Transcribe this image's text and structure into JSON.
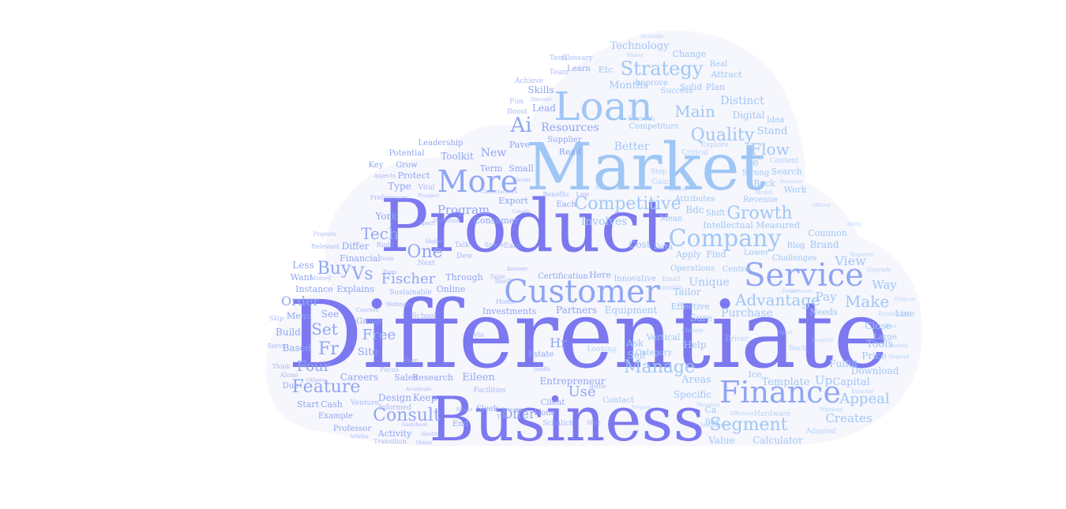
{
  "wordcloud": {
    "palette": {
      "light": "#9fc7f5",
      "mid": "#8fa6f2",
      "deep": "#7b78f0",
      "shape_fill": "#f6f6fd"
    },
    "words": [
      {
        "text": "Differentiate",
        "weight": 1.0
      },
      {
        "text": "Product",
        "weight": 0.78
      },
      {
        "text": "Market",
        "weight": 0.72
      },
      {
        "text": "Business",
        "weight": 0.72
      },
      {
        "text": "Loan",
        "weight": 0.46
      },
      {
        "text": "Customer",
        "weight": 0.42
      },
      {
        "text": "Service",
        "weight": 0.42
      },
      {
        "text": "Finance",
        "weight": 0.4
      },
      {
        "text": "More",
        "weight": 0.36
      },
      {
        "text": "Company",
        "weight": 0.32
      },
      {
        "text": "Strategy",
        "weight": 0.26
      },
      {
        "text": "Ai",
        "weight": 0.26
      },
      {
        "text": "Growth",
        "weight": 0.24
      },
      {
        "text": "Manage",
        "weight": 0.24
      },
      {
        "text": "Quality",
        "weight": 0.22
      },
      {
        "text": "Competitive",
        "weight": 0.21
      },
      {
        "text": "Feature",
        "weight": 0.22
      },
      {
        "text": "Consult",
        "weight": 0.22
      },
      {
        "text": "Segment",
        "weight": 0.22
      },
      {
        "text": "Advantage",
        "weight": 0.2
      },
      {
        "text": "Tech",
        "weight": 0.2
      },
      {
        "text": "One",
        "weight": 0.2
      },
      {
        "text": "Buy",
        "weight": 0.2
      },
      {
        "text": "Vs",
        "weight": 0.18
      },
      {
        "text": "Fischer",
        "weight": 0.18
      },
      {
        "text": "Main",
        "weight": 0.2
      },
      {
        "text": "Flow",
        "weight": 0.2
      },
      {
        "text": "Make",
        "weight": 0.2
      },
      {
        "text": "Appeal",
        "weight": 0.18
      },
      {
        "text": "Free",
        "weight": 0.18
      },
      {
        "text": "Set",
        "weight": 0.18
      },
      {
        "text": "Fr",
        "weight": 0.2
      },
      {
        "text": "Four",
        "weight": 0.18
      },
      {
        "text": "Order",
        "weight": 0.16
      },
      {
        "text": "Use",
        "weight": 0.18
      },
      {
        "text": "Hr",
        "weight": 0.16
      },
      {
        "text": "Offer",
        "weight": 0.15
      },
      {
        "text": "Program",
        "weight": 0.15
      },
      {
        "text": "Resources",
        "weight": 0.14
      },
      {
        "text": "Involves",
        "weight": 0.14
      },
      {
        "text": "Better",
        "weight": 0.14
      },
      {
        "text": "Distinct",
        "weight": 0.14
      },
      {
        "text": "Technology",
        "weight": 0.13
      },
      {
        "text": "Months",
        "weight": 0.13
      },
      {
        "text": "Unique",
        "weight": 0.14
      },
      {
        "text": "View",
        "weight": 0.16
      },
      {
        "text": "Purchase",
        "weight": 0.14
      },
      {
        "text": "Creates",
        "weight": 0.15
      },
      {
        "text": "Template",
        "weight": 0.13
      },
      {
        "text": "Capital",
        "weight": 0.13
      },
      {
        "text": "Up",
        "weight": 0.15
      },
      {
        "text": "Pay",
        "weight": 0.15
      },
      {
        "text": "Way",
        "weight": 0.15
      },
      {
        "text": "Tools",
        "weight": 0.13
      },
      {
        "text": "Close",
        "weight": 0.12
      },
      {
        "text": "Price",
        "weight": 0.12
      },
      {
        "text": "Download",
        "weight": 0.12
      },
      {
        "text": "Fulfill",
        "weight": 0.12
      },
      {
        "text": "Sell",
        "weight": 0.12
      },
      {
        "text": "Ask",
        "weight": 0.12
      },
      {
        "text": "Help",
        "weight": 0.12
      },
      {
        "text": "Sure",
        "weight": 0.12
      },
      {
        "text": "Calculator",
        "weight": 0.12
      },
      {
        "text": "Value",
        "weight": 0.12
      },
      {
        "text": "Areas",
        "weight": 0.13
      },
      {
        "text": "Specific",
        "weight": 0.12
      },
      {
        "text": "Tailor",
        "weight": 0.12
      },
      {
        "text": "Vertical",
        "weight": 0.11
      },
      {
        "text": "Equipment",
        "weight": 0.12
      },
      {
        "text": "Partners",
        "weight": 0.12
      },
      {
        "text": "Investments",
        "weight": 0.11
      },
      {
        "text": "Entrepreneur",
        "weight": 0.12
      },
      {
        "text": "Eileen",
        "weight": 0.13
      },
      {
        "text": "Careers",
        "weight": 0.12
      },
      {
        "text": "Sales",
        "weight": 0.11
      },
      {
        "text": "Research",
        "weight": 0.11
      },
      {
        "text": "Design",
        "weight": 0.12
      },
      {
        "text": "Keep",
        "weight": 0.12
      },
      {
        "text": "Activity",
        "weight": 0.11
      },
      {
        "text": "Professor",
        "weight": 0.1
      },
      {
        "text": "Example",
        "weight": 0.1
      },
      {
        "text": "Start",
        "weight": 0.11
      },
      {
        "text": "Cash",
        "weight": 0.11
      },
      {
        "text": "Due",
        "weight": 0.1
      },
      {
        "text": "Site",
        "weight": 0.13
      },
      {
        "text": "Based",
        "weight": 0.12
      },
      {
        "text": "Build",
        "weight": 0.12
      },
      {
        "text": "See",
        "weight": 0.12
      },
      {
        "text": "Menu",
        "weight": 0.11
      },
      {
        "text": "Instance",
        "weight": 0.11
      },
      {
        "text": "Explains",
        "weight": 0.11
      },
      {
        "text": "Want",
        "weight": 0.11
      },
      {
        "text": "Less",
        "weight": 0.12
      },
      {
        "text": "Financial",
        "weight": 0.11
      },
      {
        "text": "Differ",
        "weight": 0.12
      },
      {
        "text": "Type",
        "weight": 0.12
      },
      {
        "text": "York",
        "weight": 0.12
      },
      {
        "text": "Protect",
        "weight": 0.11
      },
      {
        "text": "Grow",
        "weight": 0.1
      },
      {
        "text": "Toolkit",
        "weight": 0.12
      },
      {
        "text": "Key",
        "weight": 0.1
      },
      {
        "text": "Potential",
        "weight": 0.1
      },
      {
        "text": "Leadership",
        "weight": 0.1
      },
      {
        "text": "Term",
        "weight": 0.11
      },
      {
        "text": "Small",
        "weight": 0.11
      },
      {
        "text": "Export",
        "weight": 0.11
      },
      {
        "text": "Consumer",
        "weight": 0.11
      },
      {
        "text": "Through",
        "weight": 0.11
      },
      {
        "text": "Online",
        "weight": 0.11
      },
      {
        "text": "Certification",
        "weight": 0.1
      },
      {
        "text": "Here",
        "weight": 0.11
      },
      {
        "text": "Innovative",
        "weight": 0.1
      },
      {
        "text": "Cost",
        "weight": 0.12
      },
      {
        "text": "Data",
        "weight": 0.1
      },
      {
        "text": "Apply",
        "weight": 0.11
      },
      {
        "text": "Find",
        "weight": 0.11
      },
      {
        "text": "Operations",
        "weight": 0.1
      },
      {
        "text": "Centre",
        "weight": 0.1
      },
      {
        "text": "Effective",
        "weight": 0.11
      },
      {
        "text": "Lower",
        "weight": 0.1
      },
      {
        "text": "Challenges",
        "weight": 0.1
      },
      {
        "text": "Blog",
        "weight": 0.1
      },
      {
        "text": "Brand",
        "weight": 0.12
      },
      {
        "text": "Common",
        "weight": 0.11
      },
      {
        "text": "Intellectual",
        "weight": 0.11
      },
      {
        "text": "Measured",
        "weight": 0.11
      },
      {
        "text": "Mean",
        "weight": 0.1
      },
      {
        "text": "Bdc",
        "weight": 0.12
      },
      {
        "text": "Attributes",
        "weight": 0.1
      },
      {
        "text": "Shift",
        "weight": 0.1
      },
      {
        "text": "Revenue",
        "weight": 0.1
      },
      {
        "text": "Work",
        "weight": 0.11
      },
      {
        "text": "Back",
        "weight": 0.11
      },
      {
        "text": "Search",
        "weight": 0.11
      },
      {
        "text": "Strong",
        "weight": 0.1
      },
      {
        "text": "Re",
        "weight": 0.13
      },
      {
        "text": "Stand",
        "weight": 0.13
      },
      {
        "text": "Digital",
        "weight": 0.12
      },
      {
        "text": "Idea",
        "weight": 0.1
      },
      {
        "text": "Solid",
        "weight": 0.11
      },
      {
        "text": "Plan",
        "weight": 0.11
      },
      {
        "text": "Attract",
        "weight": 0.11
      },
      {
        "text": "Success",
        "weight": 0.1
      },
      {
        "text": "Improve",
        "weight": 0.1
      },
      {
        "text": "Real",
        "weight": 0.1
      },
      {
        "text": "Change",
        "weight": 0.11
      },
      {
        "text": "Etc",
        "weight": 0.11
      },
      {
        "text": "Learn",
        "weight": 0.1
      },
      {
        "text": "Team",
        "weight": 0.09
      },
      {
        "text": "Glossary",
        "weight": 0.09
      },
      {
        "text": "Tend",
        "weight": 0.09
      },
      {
        "text": "Skills",
        "weight": 0.12
      },
      {
        "text": "Lead",
        "weight": 0.12
      },
      {
        "text": "Fun",
        "weight": 0.09
      },
      {
        "text": "Boost",
        "weight": 0.09
      },
      {
        "text": "Achieve",
        "weight": 0.09
      },
      {
        "text": "Supplier",
        "weight": 0.1
      },
      {
        "text": "Read",
        "weight": 0.11
      },
      {
        "text": "Competitors",
        "weight": 0.1
      },
      {
        "text": "Smooth",
        "weight": 0.09
      },
      {
        "text": "Critical",
        "weight": 0.09
      },
      {
        "text": "Explore",
        "weight": 0.09
      },
      {
        "text": "Content",
        "weight": 0.09
      },
      {
        "text": "Gain",
        "weight": 0.09
      },
      {
        "text": "Step",
        "weight": 0.09
      },
      {
        "text": "New",
        "weight": 0.14
      },
      {
        "text": "Pave",
        "weight": 0.11
      },
      {
        "text": "Ben",
        "weight": 0.09
      },
      {
        "text": "Focus",
        "weight": 0.08
      },
      {
        "text": "Sustainable",
        "weight": 0.09
      },
      {
        "text": "School",
        "weight": 0.09
      },
      {
        "text": "Group",
        "weight": 0.1
      },
      {
        "text": "Facilities",
        "weight": 0.09
      },
      {
        "text": "Estate",
        "weight": 0.1
      },
      {
        "text": "Client",
        "weight": 0.1
      },
      {
        "text": "Contact",
        "weight": 0.1
      },
      {
        "text": "Looking",
        "weight": 0.09
      },
      {
        "text": "Category",
        "weight": 0.1
      },
      {
        "text": "Ice",
        "weight": 0.11
      },
      {
        "text": "Driver",
        "weight": 0.09
      },
      {
        "text": "Hardware",
        "weight": 0.09
      },
      {
        "text": "Adapted",
        "weight": 0.09
      },
      {
        "text": "Large",
        "weight": 0.1
      },
      {
        "text": "Line",
        "weight": 0.11
      },
      {
        "text": "Needs",
        "weight": 0.11
      },
      {
        "text": "Such",
        "weight": 0.09
      },
      {
        "text": "Box",
        "weight": 0.1
      },
      {
        "text": "Ca",
        "weight": 0.11
      },
      {
        "text": "Hone",
        "weight": 0.1
      },
      {
        "text": "End",
        "weight": 0.1
      },
      {
        "text": "Sleek",
        "weight": 0.1
      },
      {
        "text": "Schulich",
        "weight": 0.09
      },
      {
        "text": "Toe",
        "weight": 0.08
      },
      {
        "text": "Venture",
        "weight": 0.09
      },
      {
        "text": "Informed",
        "weight": 0.09
      },
      {
        "text": "Transition",
        "weight": 0.08
      },
      {
        "text": "Alone",
        "weight": 0.08
      },
      {
        "text": "Think",
        "weight": 0.08
      },
      {
        "text": "Skip",
        "weight": 0.08
      },
      {
        "text": "Serve",
        "weight": 0.08
      },
      {
        "text": "Next",
        "weight": 0.09
      },
      {
        "text": "Talk",
        "weight": 0.09
      },
      {
        "text": "Earn",
        "weight": 0.09
      },
      {
        "text": "Space",
        "weight": 0.08
      },
      {
        "text": "Dew",
        "weight": 0.09
      },
      {
        "text": "Itself",
        "weight": 0.08
      },
      {
        "text": "Home",
        "weight": 0.08
      },
      {
        "text": "Via",
        "weight": 0.08
      },
      {
        "text": "Each",
        "weight": 0.1
      },
      {
        "text": "Benefits",
        "weight": 0.08
      },
      {
        "text": "Low",
        "weight": 0.08
      },
      {
        "text": "Vital",
        "weight": 0.09
      },
      {
        "text": "Aspects",
        "weight": 0.07
      },
      {
        "text": "Preferences",
        "weight": 0.08
      },
      {
        "text": "Right",
        "weight": 0.08
      },
      {
        "text": "Relevant",
        "weight": 0.08
      },
      {
        "text": "Projects",
        "weight": 0.07
      },
      {
        "text": "Money",
        "weight": 0.08
      },
      {
        "text": "Courses",
        "weight": 0.07
      },
      {
        "text": "Webinars",
        "weight": 0.07
      },
      {
        "text": "Others",
        "weight": 0.07
      },
      {
        "text": "Established",
        "weight": 0.07
      },
      {
        "text": "Upgrade",
        "weight": 0.07
      },
      {
        "text": "Superior",
        "weight": 0.07
      },
      {
        "text": "Answer",
        "weight": 0.07
      },
      {
        "text": "Table",
        "weight": 0.07
      },
      {
        "text": "Email",
        "weight": 0.08
      },
      {
        "text": "Consists",
        "weight": 0.08
      },
      {
        "text": "Climate",
        "weight": 0.07
      },
      {
        "text": "Industries",
        "weight": 0.07
      },
      {
        "text": "Winning",
        "weight": 0.07
      },
      {
        "text": "Tariffs",
        "weight": 0.07
      },
      {
        "text": "Shoe",
        "weight": 0.07
      },
      {
        "text": "Bottle",
        "weight": 0.07
      },
      {
        "text": "Articles",
        "weight": 0.06
      },
      {
        "text": "Obtain",
        "weight": 0.06
      },
      {
        "text": "Identity",
        "weight": 0.06
      },
      {
        "text": "Targeted",
        "weight": 0.06
      },
      {
        "text": "Certain",
        "weight": 0.06
      },
      {
        "text": "Efficiency",
        "weight": 0.06
      },
      {
        "text": "Outgrow",
        "weight": 0.06
      },
      {
        "text": "Essential",
        "weight": 0.06
      },
      {
        "text": "Buzz",
        "weight": 0.06
      },
      {
        "text": "Definition",
        "weight": 0.07
      },
      {
        "text": "Canada",
        "weight": 0.06
      },
      {
        "text": "Apart",
        "weight": 0.07
      },
      {
        "text": "Higher",
        "weight": 0.07
      },
      {
        "text": "Even",
        "weight": 0.07
      },
      {
        "text": "Drink",
        "weight": 0.06
      },
      {
        "text": "Prospect",
        "weight": 0.06
      },
      {
        "text": "Ebooks",
        "weight": 0.06
      },
      {
        "text": "Characteristics",
        "weight": 0.06
      },
      {
        "text": "Horizontal",
        "weight": 0.06
      },
      {
        "text": "Analyze",
        "weight": 0.06
      },
      {
        "text": "Model",
        "weight": 0.07
      },
      {
        "text": "Offered",
        "weight": 0.06
      },
      {
        "text": "Renovate",
        "weight": 0.06
      },
      {
        "text": "Property",
        "weight": 0.06
      },
      {
        "text": "Software",
        "weight": 0.06
      },
      {
        "text": "Power",
        "weight": 0.06
      },
      {
        "text": "Ability",
        "weight": 0.06
      },
      {
        "text": "Desirable",
        "weight": 0.06
      },
      {
        "text": "Master",
        "weight": 0.06
      },
      {
        "text": "Discover",
        "weight": 0.06
      },
      {
        "text": "Strategies",
        "weight": 0.06
      },
      {
        "text": "Mountain",
        "weight": 0.06
      },
      {
        "text": "Prepare",
        "weight": 0.06
      },
      {
        "text": "Accelerate",
        "weight": 0.06
      },
      {
        "text": "Guidebook",
        "weight": 0.06
      },
      {
        "text": "Bigger",
        "weight": 0.06
      },
      {
        "text": "Sport",
        "weight": 0.06
      }
    ]
  }
}
